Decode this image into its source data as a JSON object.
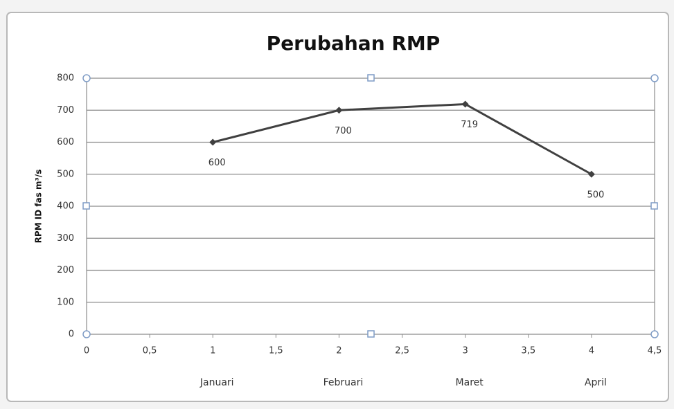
{
  "chart_data": {
    "type": "line",
    "title": "Perubahan RMP",
    "y_label": "RPM ID fas m³/s",
    "x": [
      1,
      2,
      3,
      4
    ],
    "categories": [
      "Januari",
      "Februari",
      "Maret",
      "April"
    ],
    "values": [
      600,
      700,
      719,
      500
    ],
    "color": "#404040",
    "xlim": [
      0,
      4.5
    ],
    "xticks": [
      0,
      {
        "value": 0.5,
        "label": "0,5"
      },
      1,
      {
        "value": 1.5,
        "label": "1,5"
      },
      2,
      {
        "value": 2.5,
        "label": "2,5"
      },
      3,
      {
        "value": 3.5,
        "label": "3,5"
      },
      4,
      {
        "value": 4.5,
        "label": "4,5"
      }
    ],
    "ylim": [
      0,
      800
    ],
    "yticks": [
      0,
      100,
      200,
      300,
      400,
      500,
      600,
      700,
      800
    ],
    "grid": true
  }
}
